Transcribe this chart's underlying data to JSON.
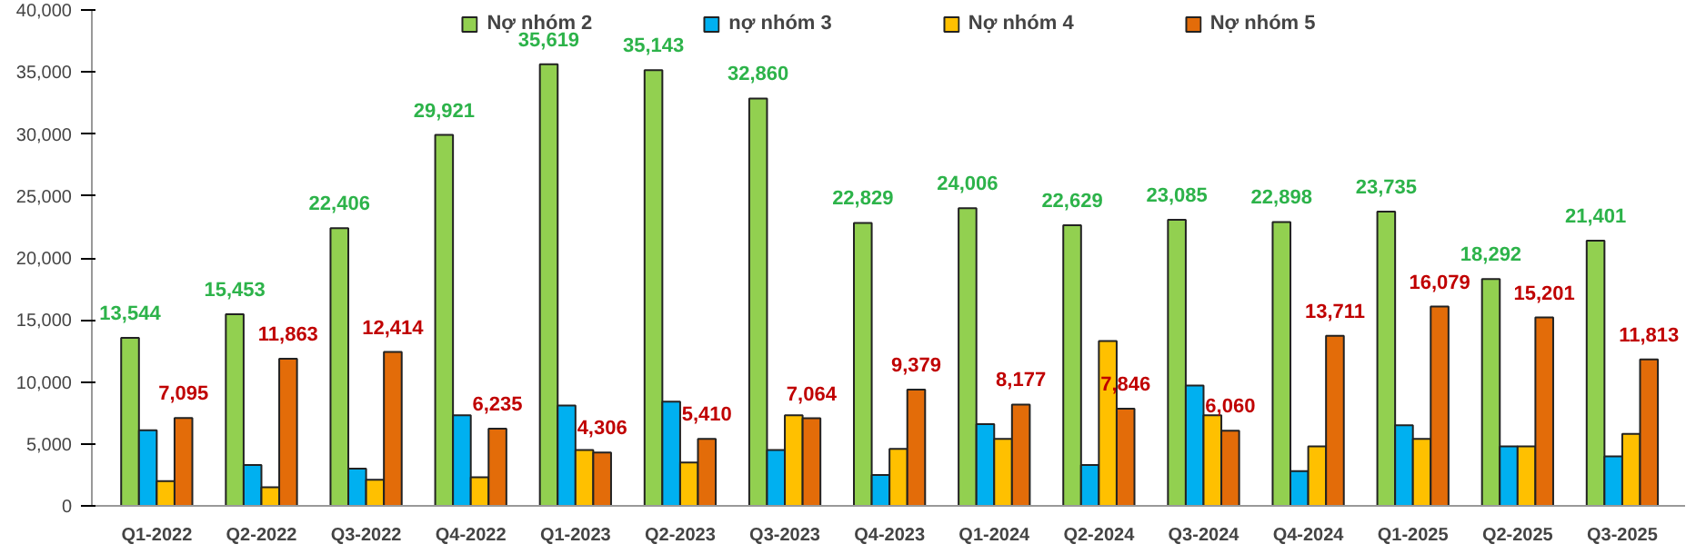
{
  "chart_data": {
    "type": "bar",
    "categories": [
      "Q1-2022",
      "Q2-2022",
      "Q3-2022",
      "Q4-2022",
      "Q1-2023",
      "Q2-2023",
      "Q3-2023",
      "Q4-2023",
      "Q1-2024",
      "Q2-2024",
      "Q3-2024",
      "Q4-2024",
      "Q1-2025",
      "Q2-2025",
      "Q3-2025"
    ],
    "series": [
      {
        "name": "Nợ nhóm 2",
        "color": "#92d050",
        "values": [
          13544,
          15453,
          22406,
          29921,
          35619,
          35143,
          32860,
          22829,
          24006,
          22629,
          23085,
          22898,
          23735,
          18292,
          21401
        ],
        "value_labels": [
          "13,544",
          "15,453",
          "22,406",
          "29,921",
          "35,619",
          "35,143",
          "32,860",
          "22,829",
          "24,006",
          "22,629",
          "23,085",
          "22,898",
          "23,735",
          "18,292",
          "21,401"
        ]
      },
      {
        "name": "nợ nhóm 3",
        "color": "#00b0f0",
        "values": [
          6100,
          3300,
          3000,
          7300,
          8100,
          8400,
          4500,
          2500,
          6600,
          3300,
          9700,
          2800,
          6500,
          4800,
          4000
        ]
      },
      {
        "name": "Nợ nhóm 4",
        "color": "#ffc000",
        "values": [
          2000,
          1500,
          2100,
          2300,
          4500,
          3500,
          7300,
          4600,
          5400,
          13300,
          7300,
          4800,
          5400,
          4800,
          5800
        ]
      },
      {
        "name": "Nợ nhóm 5",
        "color": "#e36c09",
        "values": [
          7095,
          11863,
          12414,
          6235,
          4306,
          5410,
          7064,
          9379,
          8177,
          7846,
          6060,
          13711,
          16079,
          15201,
          11813
        ],
        "value_labels": [
          "7,095",
          "11,863",
          "12,414",
          "6,235",
          "4,306",
          "5,410",
          "7,064",
          "9,379",
          "8,177",
          "7,846",
          "6,060",
          "13,711",
          "16,079",
          "15,201",
          "11,813"
        ]
      }
    ],
    "ylim": [
      0,
      40000
    ],
    "yticks": [
      {
        "value": 0,
        "label": "0"
      },
      {
        "value": 5000,
        "label": "5,000"
      },
      {
        "value": 10000,
        "label": "10,000"
      },
      {
        "value": 15000,
        "label": "15,000"
      },
      {
        "value": 20000,
        "label": "20,000"
      },
      {
        "value": 25000,
        "label": "25,000"
      },
      {
        "value": 30000,
        "label": "30,000"
      },
      {
        "value": 35000,
        "label": "35,000"
      },
      {
        "value": 40000,
        "label": "40,000"
      }
    ],
    "grid": false,
    "legend": "top"
  }
}
